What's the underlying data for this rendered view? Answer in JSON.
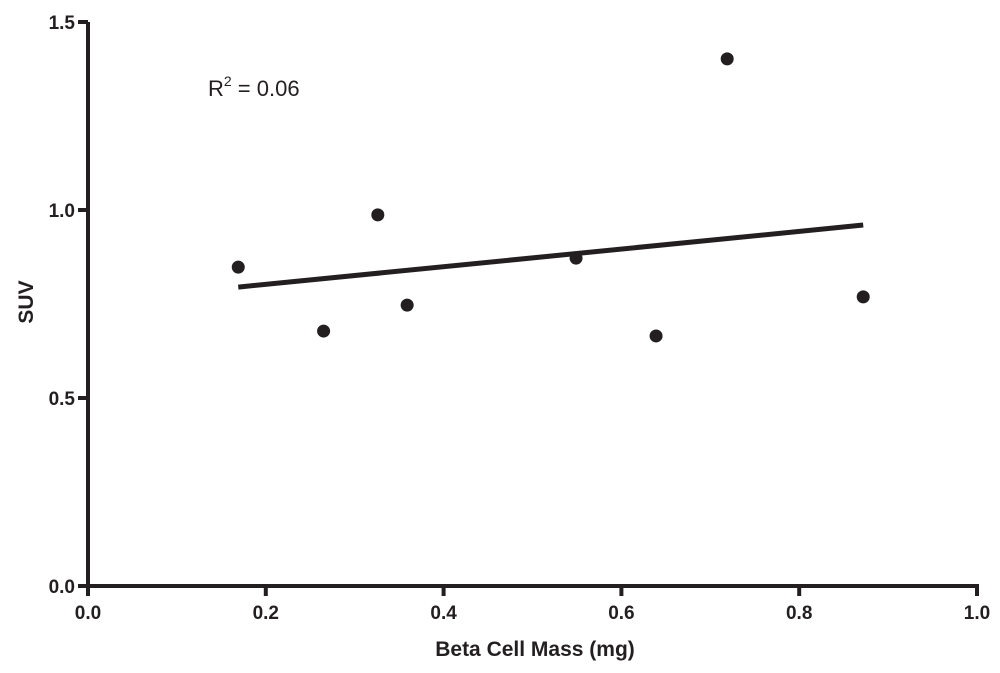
{
  "chart_data": {
    "type": "scatter",
    "title": "",
    "xlabel": "Beta Cell Mass (mg)",
    "ylabel": "SUV",
    "xlim": [
      0.0,
      1.0
    ],
    "ylim": [
      0.0,
      1.5
    ],
    "xticks": [
      "0.0",
      "0.2",
      "0.4",
      "0.6",
      "0.8",
      "1.0"
    ],
    "xtick_values": [
      0.0,
      0.2,
      0.4,
      0.6,
      0.8,
      1.0
    ],
    "yticks": [
      "0.0",
      "0.5",
      "1.0",
      "1.5"
    ],
    "ytick_values": [
      0.0,
      0.5,
      1.0,
      1.5
    ],
    "grid": false,
    "points": [
      {
        "x": 0.169,
        "y": 0.848
      },
      {
        "x": 0.265,
        "y": 0.678
      },
      {
        "x": 0.326,
        "y": 0.987
      },
      {
        "x": 0.359,
        "y": 0.747
      },
      {
        "x": 0.549,
        "y": 0.872
      },
      {
        "x": 0.639,
        "y": 0.665
      },
      {
        "x": 0.719,
        "y": 1.402
      },
      {
        "x": 0.872,
        "y": 0.769
      }
    ],
    "fit_line": {
      "x": [
        0.169,
        0.872
      ],
      "y": [
        0.795,
        0.96
      ]
    },
    "annotation": {
      "prefix": "R",
      "superscript": "2",
      "text": " = 0.06"
    },
    "colors": {
      "ink": "#231f20"
    }
  }
}
